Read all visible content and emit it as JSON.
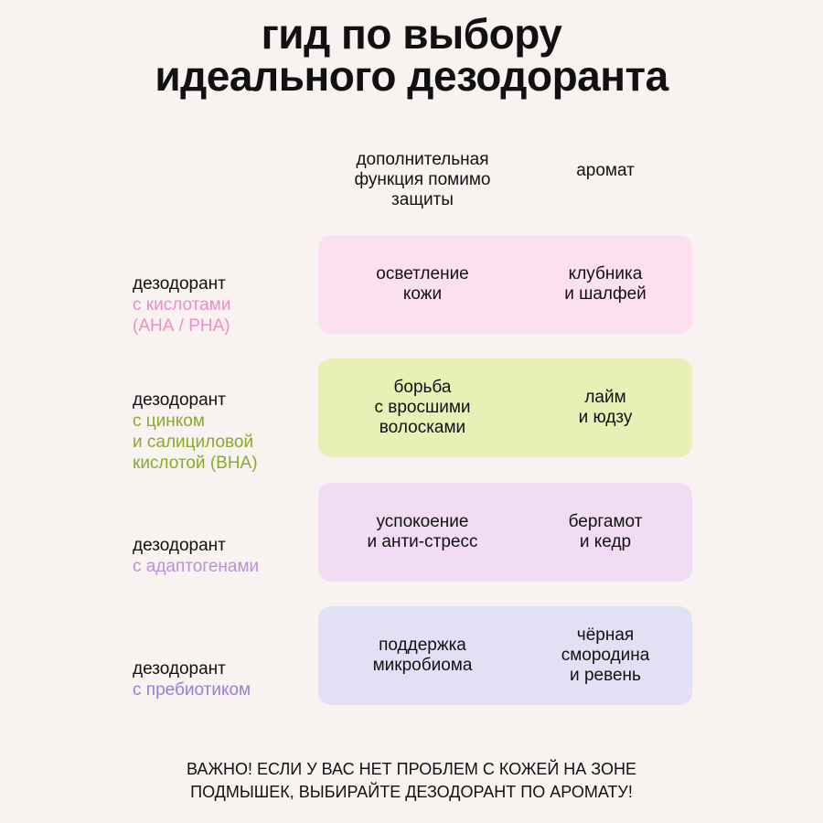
{
  "title": "гид по выбору\nидеального дезодоранта",
  "columns": {
    "function": "дополнительная\nфункция помимо\nзащиты",
    "scent": "аромат"
  },
  "rows": [
    {
      "prefix": "дезодорант",
      "type": "с кислотами\n(АНА / РНА)",
      "function": "осветление\nкожи",
      "scent": "клубника\nи шалфей",
      "accent_color": "#f08cc8",
      "card_color": "#fde0ef"
    },
    {
      "prefix": "дезодорант",
      "type": "с цинком\nи салициловой\nкислотой (ВНА)",
      "function": "борьба\nс вросшими\nволосками",
      "scent": "лайм\nи юдзу",
      "accent_color": "#8aaa2a",
      "card_color": "#e7f0b5"
    },
    {
      "prefix": "дезодорант",
      "type": "с адаптогенами",
      "function": "успокоение\nи анти-стресс",
      "scent": "бергамот\nи кедр",
      "accent_color": "#b891da",
      "card_color": "#f2dcf3"
    },
    {
      "prefix": "дезодорант",
      "type": "с пребиотиком",
      "function": "поддержка\nмикробиома",
      "scent": "чёрная\nсмородина\nи ревень",
      "accent_color": "#9a7dd6",
      "card_color": "#e2e0f5"
    }
  ],
  "footer": "ВАЖНО! ЕСЛИ У ВАС НЕТ ПРОБЛЕМ С КОЖЕЙ НА ЗОНЕ\nПОДМЫШЕК, ВЫБИРАЙТЕ ДЕЗОДОРАНТ ПО АРОМАТУ!"
}
